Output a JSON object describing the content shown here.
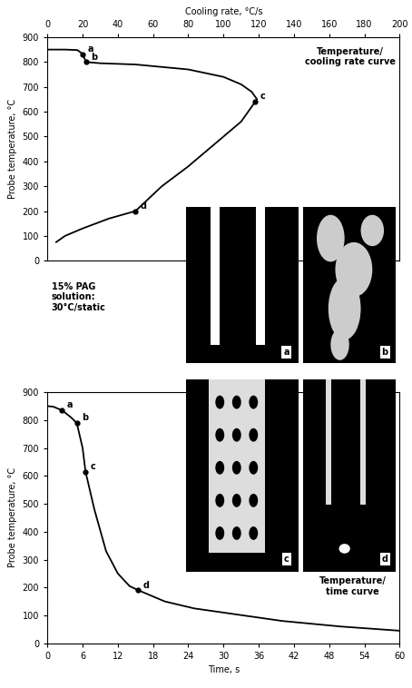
{
  "chart_data": [
    {
      "type": "line",
      "title": "Temperature/\ncooling rate curve",
      "x_label": "Cooling rate, °C/s",
      "y_label": "Probe temperature, °C",
      "x": [
        0,
        10,
        17,
        19,
        20,
        22,
        30,
        50,
        80,
        100,
        110,
        116,
        119,
        118,
        110,
        95,
        80,
        65,
        50,
        35,
        20,
        10,
        5
      ],
      "values": [
        850,
        850,
        848,
        838,
        830,
        800,
        795,
        790,
        770,
        740,
        710,
        680,
        650,
        640,
        560,
        470,
        380,
        300,
        200,
        170,
        130,
        100,
        75
      ],
      "color": "#000000",
      "points": [
        {
          "label": "a",
          "x": 20,
          "y": 830
        },
        {
          "label": "b",
          "x": 22,
          "y": 800
        },
        {
          "label": "c",
          "x": 118,
          "y": 640
        },
        {
          "label": "d",
          "x": 50,
          "y": 200
        }
      ],
      "xlim": [
        0,
        200
      ],
      "xticks": [
        0,
        20,
        40,
        60,
        80,
        100,
        120,
        140,
        160,
        180,
        200
      ],
      "ylim": [
        0,
        900
      ],
      "yticks": [
        0,
        100,
        200,
        300,
        400,
        500,
        600,
        700,
        800,
        900
      ],
      "annotations": [
        "15% PAG\nsolution:\n30°C/static"
      ]
    },
    {
      "type": "line",
      "title": "Temperature/\ntime curve",
      "x_label": "Time, s",
      "y_label": "Probe temperature, °C",
      "x": [
        0,
        1,
        2.5,
        4,
        5,
        6,
        6.5,
        8,
        10,
        12,
        14,
        15.5,
        20,
        25,
        30,
        40,
        50,
        60
      ],
      "values": [
        850,
        848,
        835,
        810,
        790,
        700,
        615,
        480,
        330,
        250,
        205,
        190,
        150,
        125,
        110,
        80,
        60,
        45
      ],
      "color": "#000000",
      "points": [
        {
          "label": "a",
          "x": 2.5,
          "y": 835
        },
        {
          "label": "b",
          "x": 5,
          "y": 790
        },
        {
          "label": "c",
          "x": 6.5,
          "y": 615
        },
        {
          "label": "d",
          "x": 15.5,
          "y": 190
        }
      ],
      "xlim": [
        0,
        60
      ],
      "xticks": [
        0,
        6,
        12,
        18,
        24,
        30,
        36,
        42,
        48,
        54,
        60
      ],
      "ylim": [
        0,
        900
      ],
      "yticks": [
        0,
        100,
        200,
        300,
        400,
        500,
        600,
        700,
        800,
        900
      ]
    }
  ],
  "photos": {
    "labels": [
      "a",
      "b",
      "c",
      "d"
    ]
  }
}
